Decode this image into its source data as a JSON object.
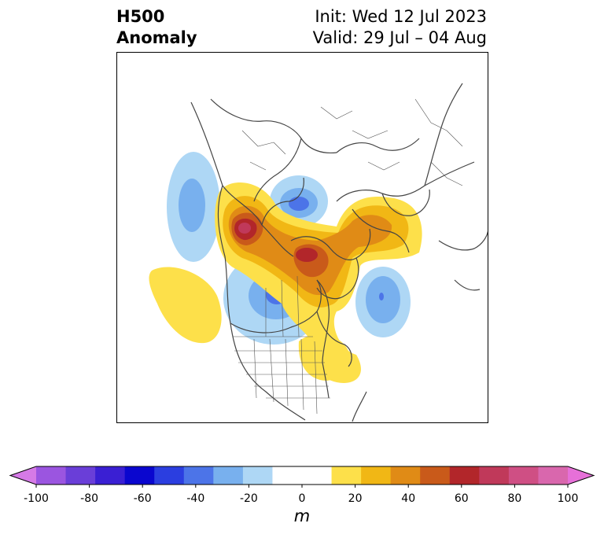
{
  "title": {
    "left_line1": "H500",
    "left_line2": "Anomaly",
    "right_line1": "Init: Wed 12 Jul 2023",
    "right_line2": "Valid: 29 Jul – 04 Aug"
  },
  "colorbar": {
    "ticks": [
      "-100",
      "-80",
      "-60",
      "-40",
      "-20",
      "0",
      "20",
      "40",
      "60",
      "80",
      "100"
    ],
    "unit": "m",
    "colors": [
      "#9b55e0",
      "#6a3ed8",
      "#3a1fd3",
      "#0a06cf",
      "#2b3ee0",
      "#4c74e8",
      "#78b0ee",
      "#aed7f5",
      "#ffffff",
      "#ffffff",
      "#fde04a",
      "#f1b715",
      "#e08b16",
      "#c95a1a",
      "#b2262a",
      "#c0395a",
      "#cf4f84",
      "#d967ad"
    ],
    "under_color": "#d57ae6",
    "over_color": "#e670d8"
  },
  "map": {
    "background": "#ffffff",
    "coastline_color": "#444444"
  }
}
